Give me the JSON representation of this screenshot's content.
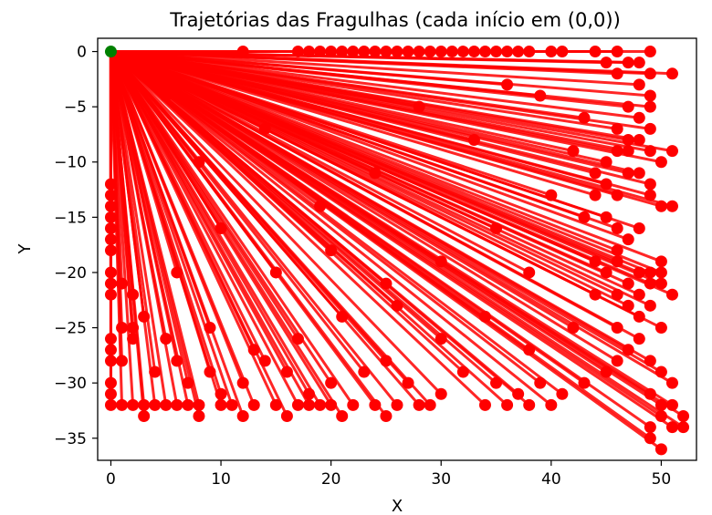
{
  "chart_data": {
    "type": "line",
    "title": "Trajetórias das Fragulhas (cada início em (0,0))",
    "xlabel": "X",
    "ylabel": "Y",
    "xlim": [
      -1.2,
      53.2
    ],
    "ylim": [
      -37.0,
      1.2
    ],
    "xticks": [
      0,
      10,
      20,
      30,
      40,
      50
    ],
    "yticks": [
      0,
      -5,
      -10,
      -15,
      -20,
      -25,
      -30,
      -35
    ],
    "grid": false,
    "legend": "none",
    "start_point": {
      "x": 0,
      "y": 0
    },
    "start_color": "#008000",
    "trajectory_color": "#ff0000",
    "end_points": [
      [
        12,
        0
      ],
      [
        17,
        0
      ],
      [
        18,
        0
      ],
      [
        19,
        0
      ],
      [
        20,
        0
      ],
      [
        21,
        0
      ],
      [
        22,
        0
      ],
      [
        23,
        0
      ],
      [
        24,
        0
      ],
      [
        25,
        0
      ],
      [
        26,
        0
      ],
      [
        27,
        0
      ],
      [
        28,
        0
      ],
      [
        29,
        0
      ],
      [
        30,
        0
      ],
      [
        31,
        0
      ],
      [
        32,
        0
      ],
      [
        33,
        0
      ],
      [
        34,
        0
      ],
      [
        35,
        0
      ],
      [
        36,
        0
      ],
      [
        37,
        0
      ],
      [
        38,
        0
      ],
      [
        40,
        0
      ],
      [
        41,
        0
      ],
      [
        44,
        0
      ],
      [
        46,
        0
      ],
      [
        49,
        0
      ],
      [
        45,
        -1
      ],
      [
        47,
        -1
      ],
      [
        48,
        -1
      ],
      [
        46,
        -2
      ],
      [
        49,
        -2
      ],
      [
        51,
        -2
      ],
      [
        48,
        -3
      ],
      [
        49,
        -4
      ],
      [
        47,
        -5
      ],
      [
        49,
        -5
      ],
      [
        48,
        -6
      ],
      [
        46,
        -7
      ],
      [
        49,
        -7
      ],
      [
        47,
        -8
      ],
      [
        48,
        -8
      ],
      [
        46,
        -9
      ],
      [
        47,
        -9
      ],
      [
        49,
        -9
      ],
      [
        51,
        -9
      ],
      [
        45,
        -10
      ],
      [
        50,
        -10
      ],
      [
        44,
        -11
      ],
      [
        47,
        -11
      ],
      [
        48,
        -11
      ],
      [
        45,
        -12
      ],
      [
        49,
        -12
      ],
      [
        44,
        -13
      ],
      [
        46,
        -13
      ],
      [
        49,
        -13
      ],
      [
        50,
        -14
      ],
      [
        51,
        -14
      ],
      [
        43,
        -15
      ],
      [
        45,
        -15
      ],
      [
        46,
        -16
      ],
      [
        48,
        -16
      ],
      [
        47,
        -17
      ],
      [
        46,
        -18
      ],
      [
        44,
        -19
      ],
      [
        46,
        -19
      ],
      [
        50,
        -19
      ],
      [
        45,
        -20
      ],
      [
        48,
        -20
      ],
      [
        49,
        -20
      ],
      [
        50,
        -20
      ],
      [
        47,
        -21
      ],
      [
        49,
        -21
      ],
      [
        50,
        -21
      ],
      [
        44,
        -22
      ],
      [
        46,
        -22
      ],
      [
        48,
        -22
      ],
      [
        51,
        -22
      ],
      [
        47,
        -23
      ],
      [
        49,
        -23
      ],
      [
        48,
        -24
      ],
      [
        46,
        -25
      ],
      [
        50,
        -25
      ],
      [
        0,
        -12
      ],
      [
        0,
        -13
      ],
      [
        0,
        -14
      ],
      [
        0,
        -15
      ],
      [
        0,
        -16
      ],
      [
        0,
        -17
      ],
      [
        0,
        -18
      ],
      [
        0,
        -20
      ],
      [
        0,
        -21
      ],
      [
        0,
        -22
      ],
      [
        1,
        -21
      ],
      [
        2,
        -22
      ],
      [
        1,
        -25
      ],
      [
        2,
        -25
      ],
      [
        2,
        -26
      ],
      [
        3,
        -24
      ],
      [
        0,
        -26
      ],
      [
        0,
        -27
      ],
      [
        0,
        -28
      ],
      [
        1,
        -28
      ],
      [
        0,
        -30
      ],
      [
        0,
        -31
      ],
      [
        0,
        -32
      ],
      [
        1,
        -32
      ],
      [
        2,
        -32
      ],
      [
        3,
        -32
      ],
      [
        4,
        -32
      ],
      [
        5,
        -32
      ],
      [
        6,
        -32
      ],
      [
        7,
        -32
      ],
      [
        8,
        -32
      ],
      [
        10,
        -32
      ],
      [
        11,
        -32
      ],
      [
        13,
        -32
      ],
      [
        15,
        -32
      ],
      [
        17,
        -32
      ],
      [
        18,
        -32
      ],
      [
        19,
        -32
      ],
      [
        20,
        -32
      ],
      [
        22,
        -32
      ],
      [
        24,
        -32
      ],
      [
        26,
        -32
      ],
      [
        28,
        -32
      ],
      [
        29,
        -32
      ],
      [
        34,
        -32
      ],
      [
        36,
        -32
      ],
      [
        38,
        -32
      ],
      [
        40,
        -32
      ],
      [
        3,
        -33
      ],
      [
        8,
        -33
      ],
      [
        12,
        -33
      ],
      [
        16,
        -33
      ],
      [
        21,
        -33
      ],
      [
        25,
        -33
      ],
      [
        4,
        -29
      ],
      [
        6,
        -28
      ],
      [
        7,
        -30
      ],
      [
        9,
        -29
      ],
      [
        10,
        -31
      ],
      [
        12,
        -30
      ],
      [
        14,
        -28
      ],
      [
        16,
        -29
      ],
      [
        18,
        -31
      ],
      [
        20,
        -30
      ],
      [
        23,
        -29
      ],
      [
        25,
        -28
      ],
      [
        27,
        -30
      ],
      [
        30,
        -31
      ],
      [
        32,
        -29
      ],
      [
        35,
        -30
      ],
      [
        37,
        -31
      ],
      [
        39,
        -30
      ],
      [
        41,
        -31
      ],
      [
        43,
        -30
      ],
      [
        45,
        -29
      ],
      [
        46,
        -28
      ],
      [
        47,
        -27
      ],
      [
        48,
        -26
      ],
      [
        49,
        -28
      ],
      [
        50,
        -29
      ],
      [
        51,
        -30
      ],
      [
        49,
        -31
      ],
      [
        50,
        -32
      ],
      [
        51,
        -32
      ],
      [
        50,
        -33
      ],
      [
        52,
        -33
      ],
      [
        49,
        -34
      ],
      [
        51,
        -34
      ],
      [
        52,
        -34
      ],
      [
        49,
        -35
      ],
      [
        50,
        -36
      ],
      [
        5,
        -26
      ],
      [
        9,
        -25
      ],
      [
        13,
        -27
      ],
      [
        17,
        -26
      ],
      [
        21,
        -24
      ],
      [
        26,
        -23
      ],
      [
        30,
        -26
      ],
      [
        34,
        -24
      ],
      [
        38,
        -27
      ],
      [
        42,
        -25
      ],
      [
        15,
        -20
      ],
      [
        20,
        -18
      ],
      [
        25,
        -21
      ],
      [
        30,
        -19
      ],
      [
        35,
        -16
      ],
      [
        38,
        -20
      ],
      [
        40,
        -13
      ],
      [
        42,
        -9
      ],
      [
        43,
        -6
      ],
      [
        39,
        -4
      ],
      [
        36,
        -3
      ],
      [
        33,
        -8
      ],
      [
        28,
        -5
      ],
      [
        24,
        -11
      ],
      [
        19,
        -14
      ],
      [
        10,
        -16
      ],
      [
        6,
        -20
      ],
      [
        8,
        -10
      ],
      [
        14,
        -7
      ],
      [
        5,
        -4
      ]
    ]
  }
}
